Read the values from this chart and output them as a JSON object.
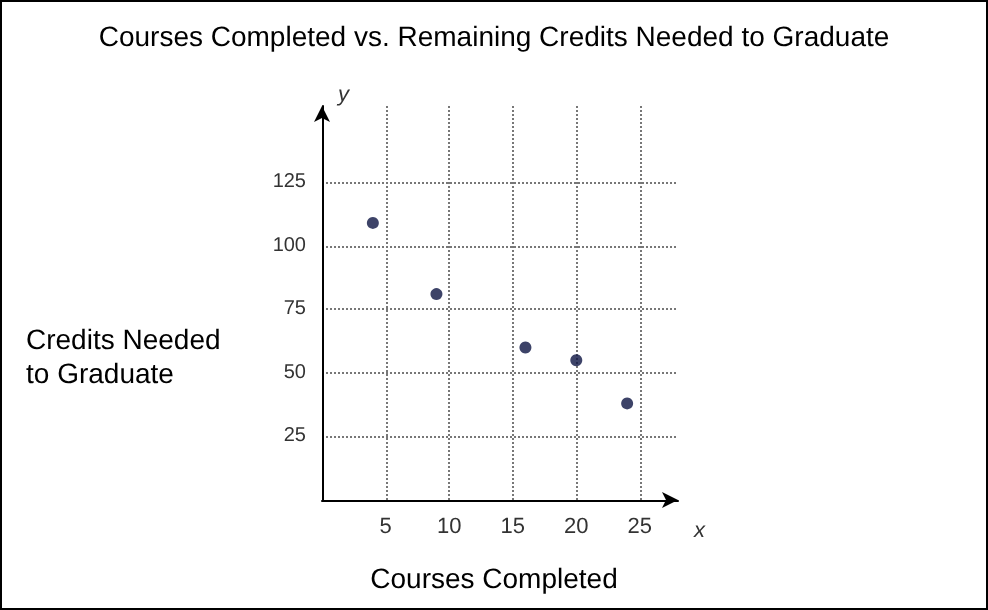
{
  "chart_data": {
    "type": "scatter",
    "title": "Courses Completed vs. Remaining Credits Needed to Graduate",
    "xlabel": "Courses Completed",
    "ylabel": "Credits Needed\nto Graduate",
    "annotations": [
      "x",
      "y"
    ],
    "x": [
      4,
      9,
      16,
      20,
      24
    ],
    "values": [
      109,
      81,
      60,
      55,
      38
    ],
    "color": "#0d1442",
    "marker": "circle",
    "xlim": [
      0,
      28
    ],
    "ylim": [
      0,
      155
    ],
    "xticks": [
      5,
      10,
      15,
      20,
      25
    ],
    "yticks": [
      25,
      50,
      75,
      100,
      125
    ],
    "grid": true
  }
}
